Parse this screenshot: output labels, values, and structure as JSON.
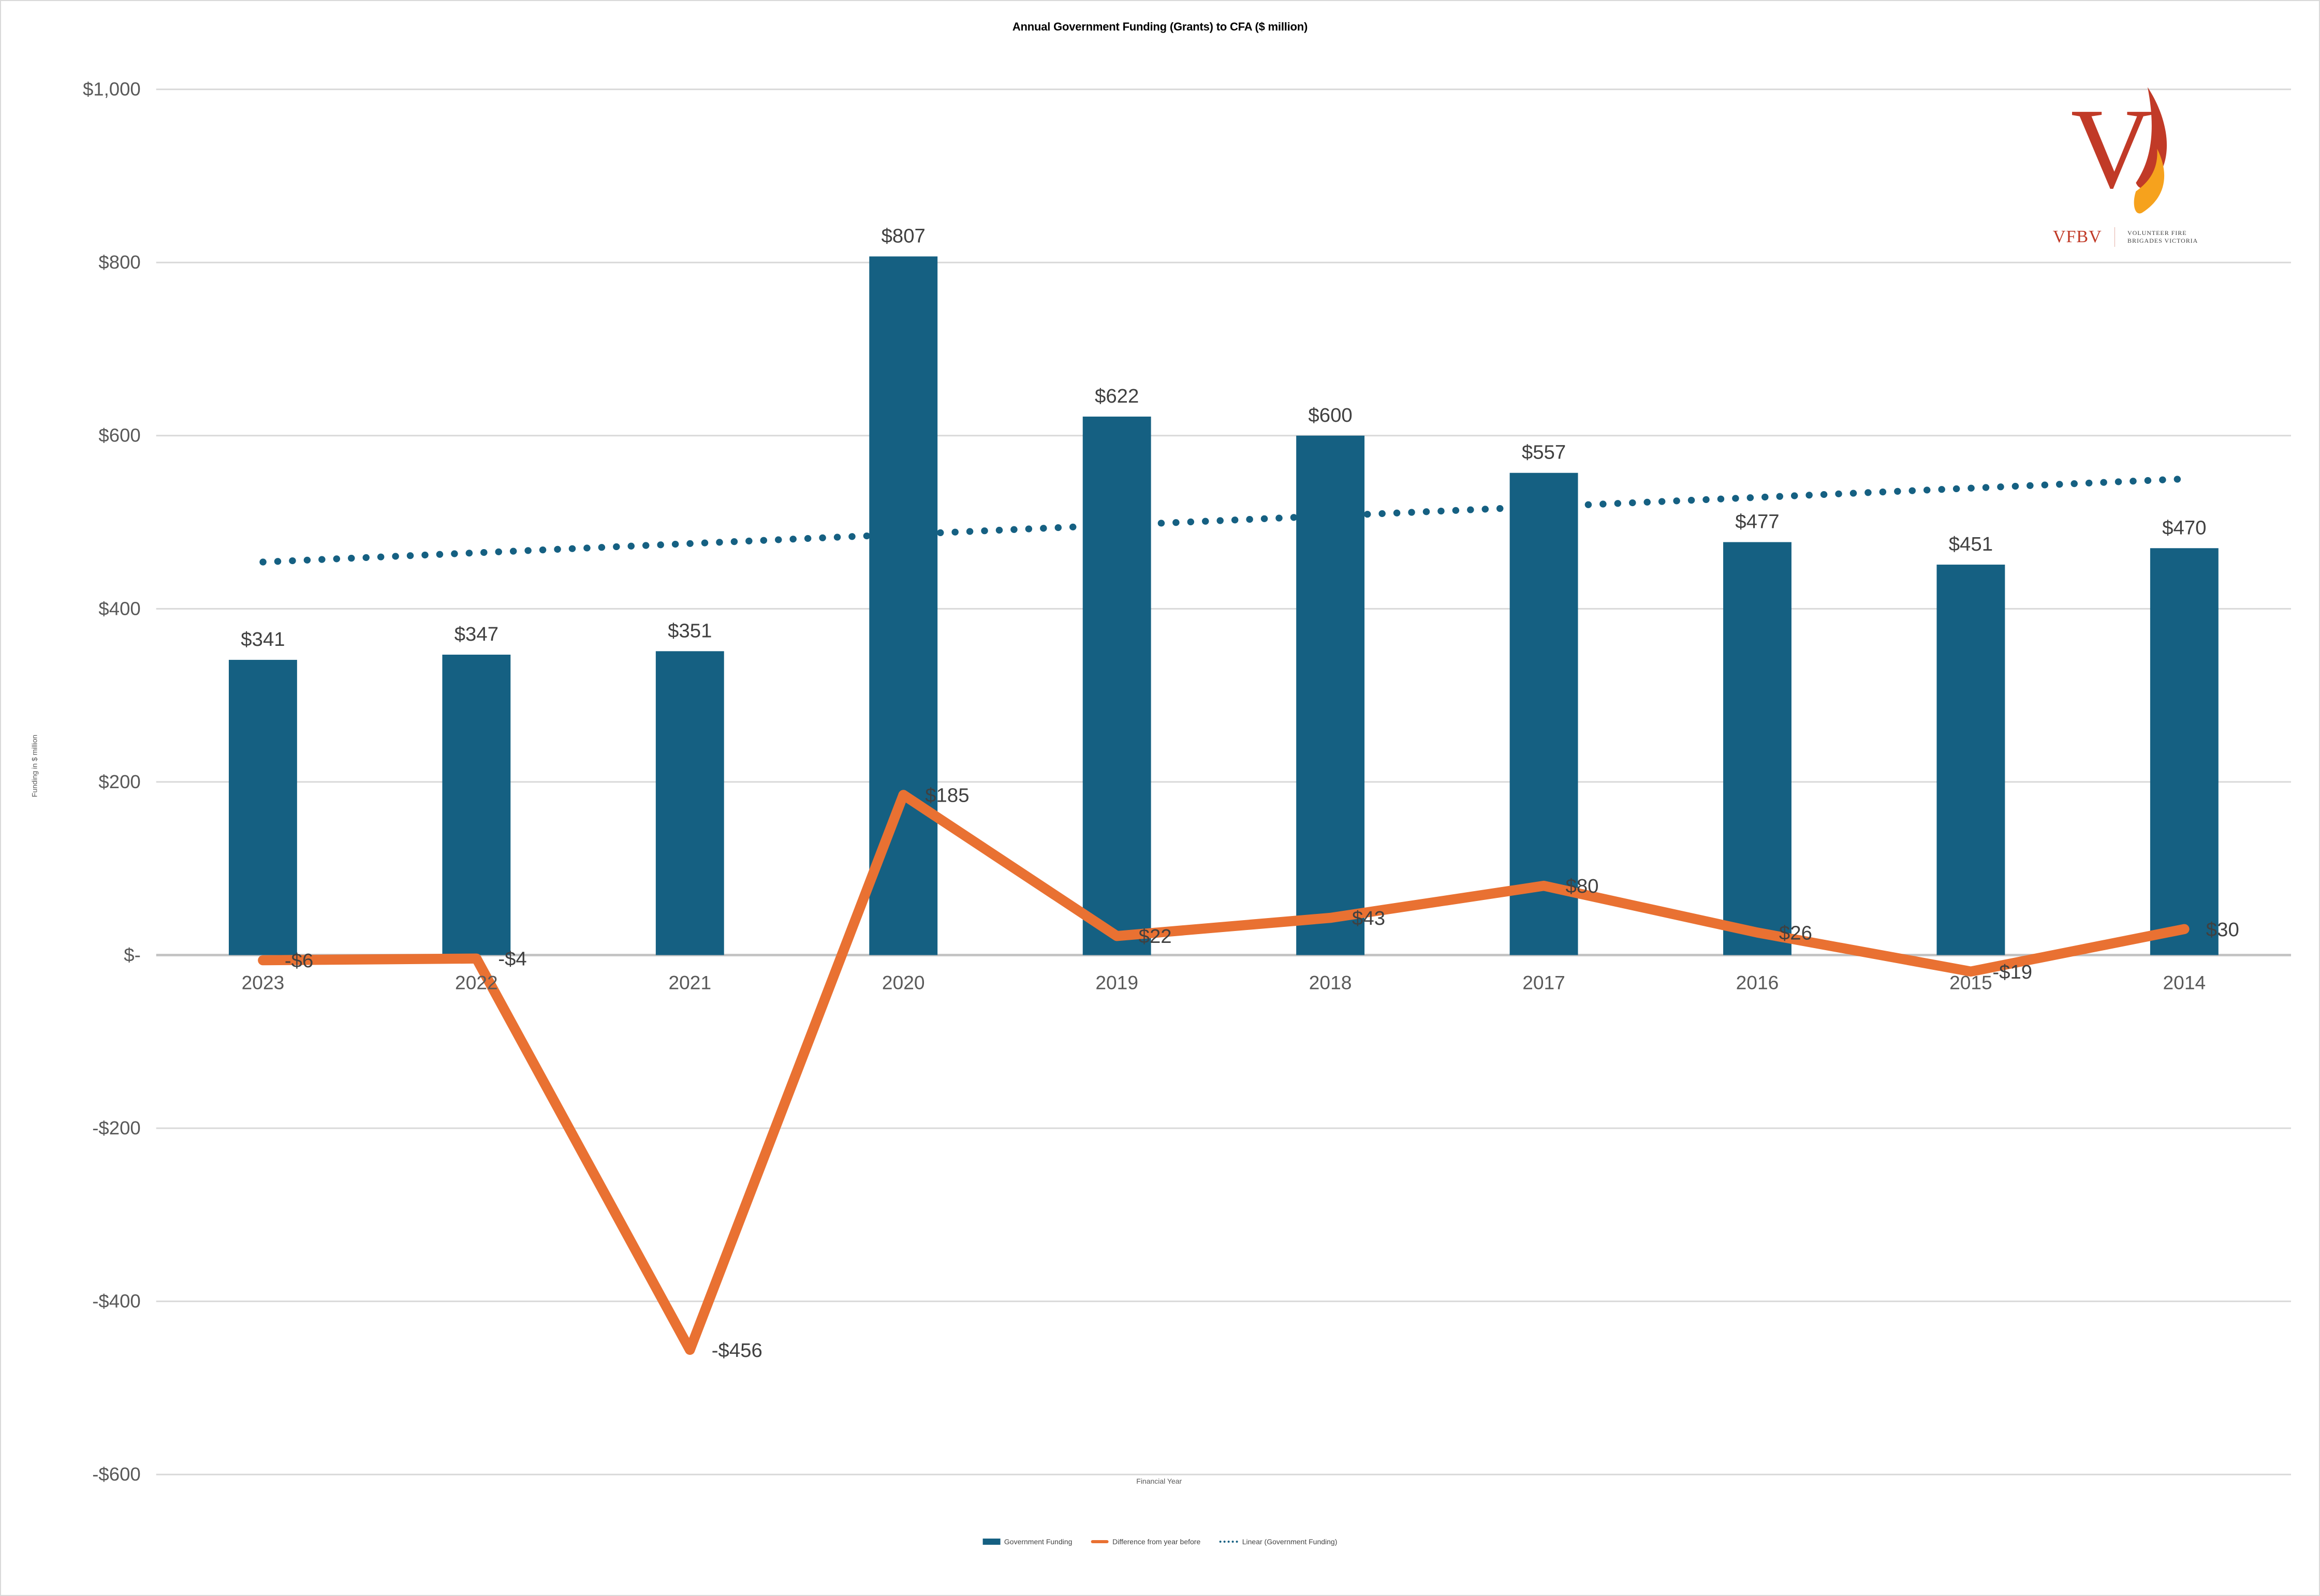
{
  "page_title": "Annual Government Funding (Grants) to CFA ($ million)",
  "logo": {
    "abbr": "VFBV",
    "name_line1": "VOLUNTEER FIRE",
    "name_line2": "BRIGADES VICTORIA",
    "mark": "v-flame-logo",
    "brand_red": "#C13A27",
    "brand_orange": "#F6A21D"
  },
  "axes": {
    "y_title": "Funding in $ million",
    "x_title": "Financial Year",
    "y_tick_labels": [
      "$1,000",
      "$800",
      "$600",
      "$400",
      "$200",
      "$-",
      "-$200",
      "-$400",
      "-$600"
    ],
    "y_tick_values": [
      1000,
      800,
      600,
      400,
      200,
      0,
      -200,
      -400,
      -600
    ]
  },
  "colors": {
    "bar": "#156082",
    "line": "#E97132",
    "trendline": "#156082",
    "gridline": "#d9d9d9",
    "axis_line": "#c3c3c3",
    "tick_text": "#595959",
    "data_label": "#404040",
    "title_text": "#000000",
    "frame": "#d9d9d9"
  },
  "chart_data": {
    "type": "bar",
    "title": "Annual Government Funding (Grants) to CFA ($ million)",
    "xlabel": "Financial Year",
    "ylabel": "Funding in $ million",
    "ylim": [
      -600,
      1000
    ],
    "ytick_step": 200,
    "grid": true,
    "legend_position": "bottom",
    "categories": [
      "2023",
      "2022",
      "2021",
      "2020",
      "2019",
      "2018",
      "2017",
      "2016",
      "2015",
      "2014"
    ],
    "series": [
      {
        "name": "Government Funding",
        "type": "bar",
        "color": "#156082",
        "values": [
          341,
          347,
          351,
          807,
          622,
          600,
          557,
          477,
          451,
          470
        ],
        "labels": [
          "$341",
          "$347",
          "$351",
          "$807",
          "$622",
          "$600",
          "$557",
          "$477",
          "$451",
          "$470"
        ]
      },
      {
        "name": "Difference from year before",
        "type": "line",
        "color": "#E97132",
        "values": [
          -6,
          -4,
          -456,
          185,
          22,
          43,
          80,
          26,
          -19,
          30
        ],
        "labels": [
          "-$6",
          "-$4",
          "-$456",
          "$185",
          "$22",
          "$43",
          "$80",
          "$26",
          "-$19",
          "$30"
        ]
      },
      {
        "name": "Linear (Government Funding)",
        "type": "trendline",
        "style": "dotted",
        "color": "#156082",
        "endpoint_values": [
          454,
          550
        ]
      }
    ]
  },
  "legend": {
    "items": [
      {
        "label": "Government Funding",
        "swatch": "bar"
      },
      {
        "label": "Difference from year before",
        "swatch": "line"
      },
      {
        "label": "Linear (Government Funding)",
        "swatch": "dotted"
      }
    ]
  }
}
